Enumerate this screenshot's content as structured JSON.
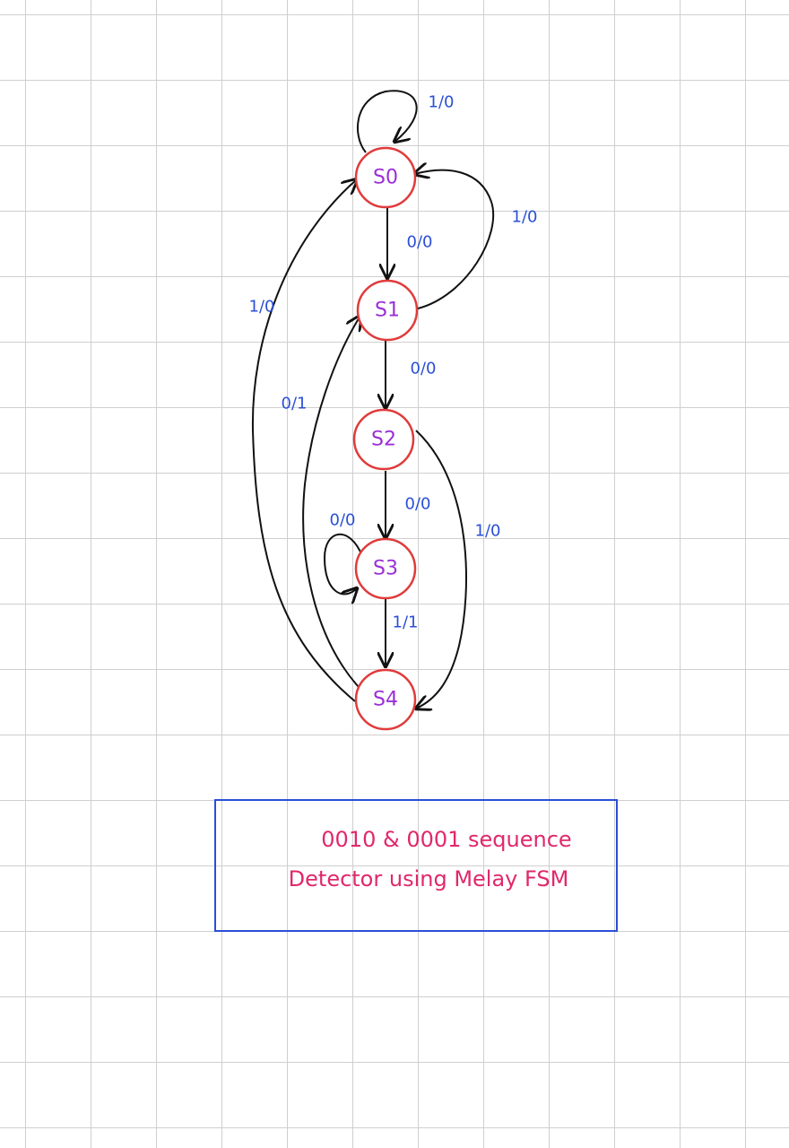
{
  "states": {
    "s0": "S0",
    "s1": "S1",
    "s2": "S2",
    "s3": "S3",
    "s4": "S4"
  },
  "transitions": {
    "s0_self": "1/0",
    "s0_s1": "0/0",
    "s1_s0": "1/0",
    "s1_s2": "0/0",
    "s2_s3": "0/0",
    "s2_s4": "1/0",
    "s3_self": "0/0",
    "s3_s4": "1/1",
    "s4_s0": "1/0",
    "s4_s1": "0/1"
  },
  "title": {
    "line1": "0010 & 0001 sequence",
    "line2": "Detector using Melay FSM"
  },
  "colors": {
    "state_border": "#e03b3b",
    "state_text": "#9a2fd6",
    "edge_label": "#2a4fd6",
    "title_text": "#e0286a",
    "title_box": "#2a4fd6"
  }
}
